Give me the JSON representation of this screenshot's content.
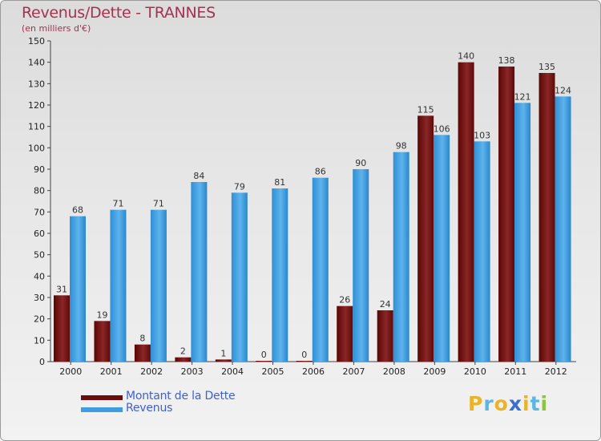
{
  "header": {
    "title": "Revenus/Dette - TRANNES",
    "subtitle": "(en milliers d'€)"
  },
  "legend": {
    "items": [
      {
        "label": "Montant de la Dette",
        "color": "#6b0d0d"
      },
      {
        "label": "Revenus",
        "color": "#3d9de0"
      }
    ]
  },
  "logo": {
    "text": "Proxiti",
    "letters": [
      {
        "ch": "P",
        "color": "#e9b32a"
      },
      {
        "ch": "r",
        "color": "#5cb6e2"
      },
      {
        "ch": "o",
        "color": "#e9b32a"
      },
      {
        "ch": "x",
        "color": "#3a6fd0"
      },
      {
        "ch": "i",
        "color": "#e9b32a"
      },
      {
        "ch": "t",
        "color": "#5cb6e2"
      },
      {
        "ch": "i",
        "color": "#8cc63f"
      }
    ]
  },
  "chart_data": {
    "type": "bar",
    "title": "Revenus/Dette - TRANNES",
    "subtitle": "(en milliers d'€)",
    "categories": [
      "2000",
      "2001",
      "2002",
      "2003",
      "2004",
      "2005",
      "2006",
      "2007",
      "2008",
      "2009",
      "2010",
      "2011",
      "2012"
    ],
    "series": [
      {
        "name": "Montant de la Dette",
        "color": "#7a1a1a",
        "values": [
          31,
          19,
          8,
          2,
          1,
          0,
          0,
          26,
          24,
          115,
          140,
          138,
          135
        ]
      },
      {
        "name": "Revenus",
        "color": "#3d9de0",
        "values": [
          68,
          71,
          71,
          84,
          79,
          81,
          86,
          90,
          98,
          106,
          103,
          121,
          124
        ]
      }
    ],
    "ylim": [
      0,
      150
    ],
    "ytick_step": 10,
    "grid": false,
    "legend_position": "bottom-left"
  }
}
